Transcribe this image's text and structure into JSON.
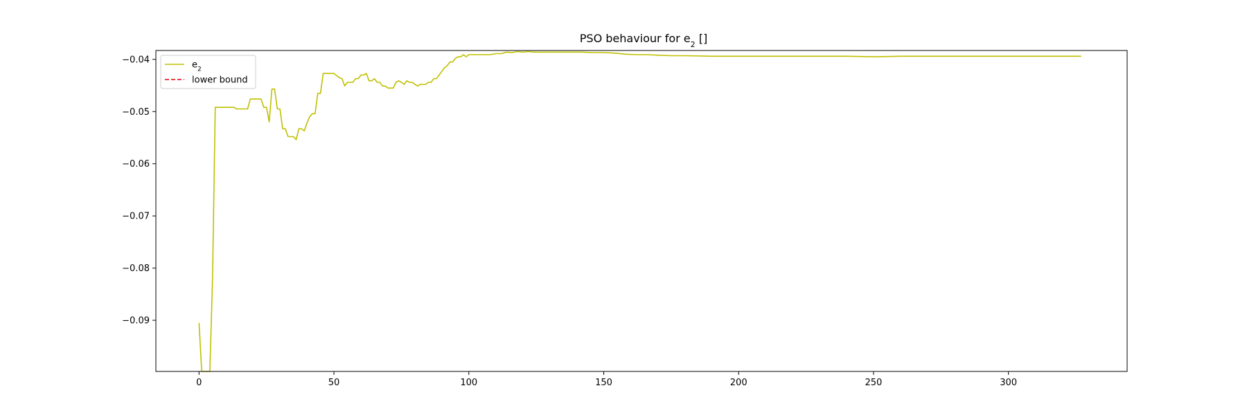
{
  "chart_data": {
    "type": "line",
    "title_main": "PSO behaviour for e",
    "title_sub": "2",
    "title_tail": " []",
    "xlim": [
      -16,
      344
    ],
    "ylim": [
      -0.0998,
      -0.0383
    ],
    "xticks": [
      0,
      50,
      100,
      150,
      200,
      250,
      300
    ],
    "yticks": [
      -0.09,
      -0.08,
      -0.07,
      -0.06,
      -0.05,
      -0.04
    ],
    "xtick_labels": [
      "0",
      "50",
      "100",
      "150",
      "200",
      "250",
      "300"
    ],
    "ytick_labels": [
      "−0.09",
      "−0.08",
      "−0.07",
      "−0.06",
      "−0.05",
      "−0.04"
    ],
    "grid": false,
    "legend_position": "upper-left",
    "series": [
      {
        "name": "e",
        "name_sub": "2",
        "color": "#bfbf00",
        "style": "solid",
        "x": [
          0,
          1,
          2,
          3,
          4,
          5,
          6,
          7,
          8,
          9,
          10,
          11,
          12,
          13,
          14,
          15,
          16,
          17,
          18,
          19,
          20,
          21,
          22,
          23,
          24,
          25,
          26,
          27,
          28,
          29,
          30,
          31,
          32,
          33,
          34,
          35,
          36,
          37,
          38,
          39,
          40,
          41,
          42,
          43,
          44,
          45,
          46,
          47,
          48,
          50,
          52,
          53,
          54,
          55,
          56,
          57,
          58,
          59,
          60,
          61,
          62,
          63,
          64,
          65,
          66,
          67,
          68,
          69,
          70,
          71,
          72,
          73,
          74,
          75,
          76,
          77,
          78,
          79,
          80,
          81,
          82,
          83,
          84,
          85,
          86,
          87,
          88,
          89,
          90,
          91,
          92,
          93,
          94,
          95,
          96,
          97,
          98,
          99,
          100,
          101,
          102,
          103,
          104,
          106,
          108,
          110,
          112,
          114,
          116,
          118,
          120,
          122,
          124,
          126,
          128,
          130,
          134,
          138,
          142,
          146,
          150,
          154,
          158,
          162,
          166,
          170,
          175,
          180,
          190,
          200,
          210,
          220,
          230,
          240,
          250,
          260,
          270,
          280,
          290,
          300,
          310,
          320,
          327
        ],
        "y": [
          -0.0905,
          -0.0998,
          -0.0998,
          -0.0998,
          -0.0998,
          -0.082,
          -0.0492,
          -0.0492,
          -0.0492,
          -0.0492,
          -0.0492,
          -0.0492,
          -0.0492,
          -0.0492,
          -0.0495,
          -0.0495,
          -0.0495,
          -0.0495,
          -0.0495,
          -0.0476,
          -0.0476,
          -0.0476,
          -0.0476,
          -0.0476,
          -0.0492,
          -0.0492,
          -0.052,
          -0.0457,
          -0.0457,
          -0.0495,
          -0.0495,
          -0.0533,
          -0.0533,
          -0.0548,
          -0.0548,
          -0.0548,
          -0.0554,
          -0.0533,
          -0.0533,
          -0.0537,
          -0.0522,
          -0.051,
          -0.0504,
          -0.0504,
          -0.0465,
          -0.0465,
          -0.0427,
          -0.0427,
          -0.0427,
          -0.0427,
          -0.0435,
          -0.0437,
          -0.0451,
          -0.0444,
          -0.0444,
          -0.0444,
          -0.0437,
          -0.0437,
          -0.043,
          -0.043,
          -0.0427,
          -0.0441,
          -0.0441,
          -0.0437,
          -0.0444,
          -0.0444,
          -0.0451,
          -0.0451,
          -0.0455,
          -0.0455,
          -0.0455,
          -0.0444,
          -0.0441,
          -0.0444,
          -0.0448,
          -0.0441,
          -0.0444,
          -0.0444,
          -0.0448,
          -0.0451,
          -0.0448,
          -0.0448,
          -0.0448,
          -0.0444,
          -0.0444,
          -0.0437,
          -0.0437,
          -0.043,
          -0.0423,
          -0.0416,
          -0.0412,
          -0.0405,
          -0.0405,
          -0.0398,
          -0.0395,
          -0.0395,
          -0.0391,
          -0.0395,
          -0.0391,
          -0.0391,
          -0.0391,
          -0.0391,
          -0.0391,
          -0.0391,
          -0.0391,
          -0.0389,
          -0.0389,
          -0.0386,
          -0.0387,
          -0.0385,
          -0.0386,
          -0.0385,
          -0.0386,
          -0.0386,
          -0.0386,
          -0.0386,
          -0.0386,
          -0.0386,
          -0.0386,
          -0.0387,
          -0.0387,
          -0.0388,
          -0.039,
          -0.0391,
          -0.0391,
          -0.0392,
          -0.0393,
          -0.0393,
          -0.0394,
          -0.0394,
          -0.0394,
          -0.0394,
          -0.0394,
          -0.0394,
          -0.0395,
          -0.0394,
          -0.0394,
          -0.0394,
          -0.0394,
          -0.0394,
          -0.0394,
          -0.0394,
          -0.0394
        ]
      },
      {
        "name": "lower bound",
        "color": "#e8000b",
        "style": "dashed",
        "x": [],
        "y": []
      }
    ]
  }
}
